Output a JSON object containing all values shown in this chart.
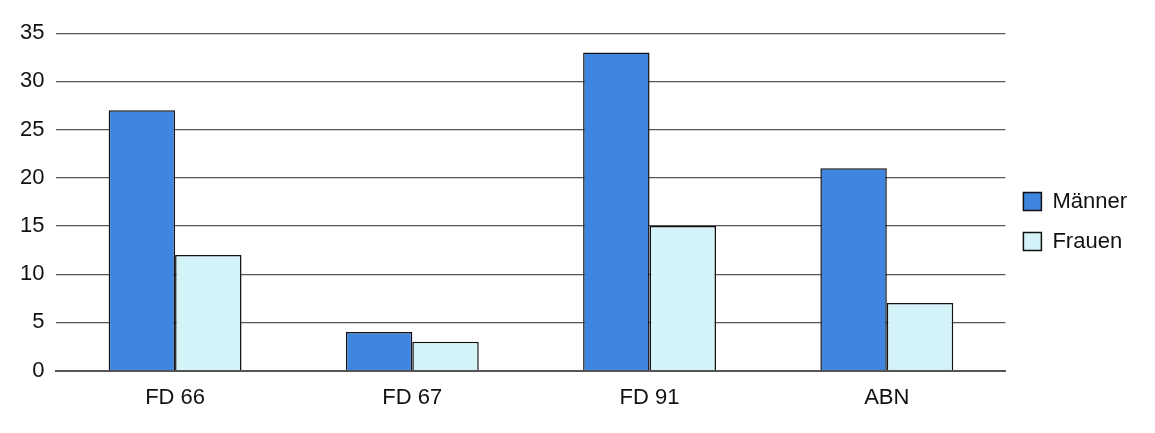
{
  "chart_data": {
    "type": "bar",
    "categories": [
      "FD 66",
      "FD 67",
      "FD 91",
      "ABN"
    ],
    "series": [
      {
        "name": "Männer",
        "color": "#3f86e0",
        "values": [
          27,
          4,
          33,
          21
        ]
      },
      {
        "name": "Frauen",
        "color": "#d4f3f8",
        "values": [
          12,
          3,
          15,
          7
        ]
      }
    ],
    "ylim": [
      0,
      35
    ],
    "yticks": [
      0,
      5,
      10,
      15,
      20,
      25,
      30,
      35
    ],
    "grid": "y",
    "legend": "right"
  }
}
